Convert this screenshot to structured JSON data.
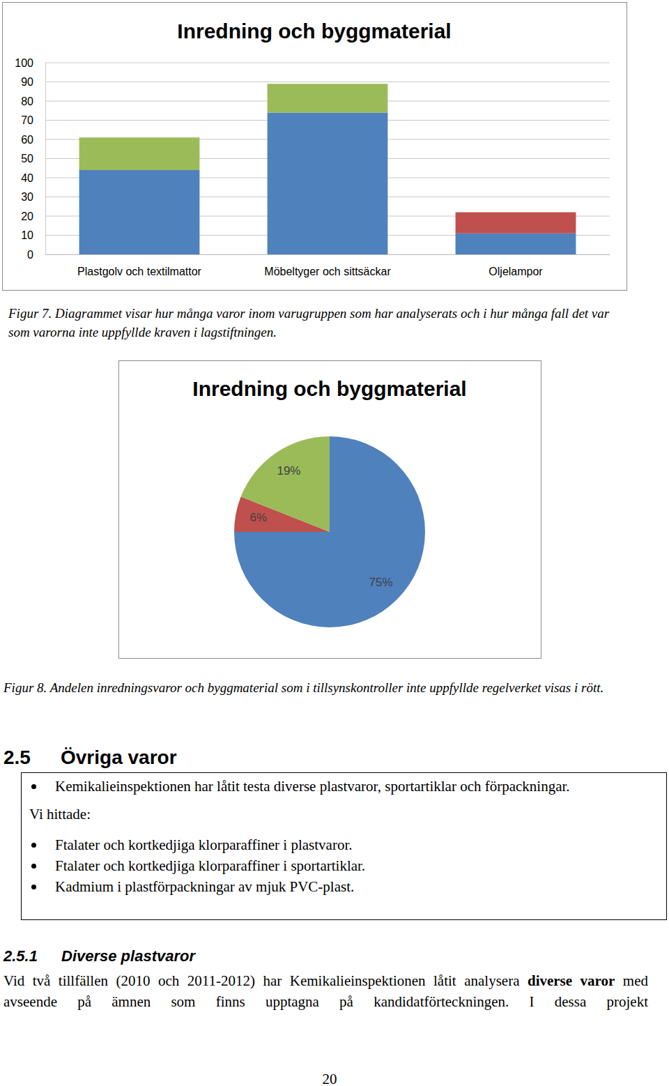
{
  "chart_data": [
    {
      "type": "bar",
      "title": "Inredning och byggmaterial",
      "categories": [
        "Plastgolv och textilmattor",
        "Möbeltyger och sittsäckar",
        "Oljelampor"
      ],
      "series": [
        {
          "color": "#4f81bd",
          "values": [
            44,
            74,
            11
          ]
        },
        {
          "color": "#9bbb59",
          "values": [
            17,
            15,
            0
          ]
        },
        {
          "color": "#c0504d",
          "values": [
            0,
            0,
            11
          ]
        }
      ],
      "stacked": true,
      "ylim": [
        0,
        100
      ],
      "yticks": [
        0,
        10,
        20,
        30,
        40,
        50,
        60,
        70,
        80,
        90,
        100
      ],
      "grid": true
    },
    {
      "type": "pie",
      "title": "Inredning och byggmaterial",
      "values": [
        75,
        6,
        19
      ],
      "value_labels": [
        "75%",
        "6%",
        "19%"
      ],
      "colors": [
        "#4f81bd",
        "#c0504d",
        "#9bbb59"
      ],
      "data_labels": true
    }
  ],
  "document": {
    "caption_7": "Figur 7. Diagrammet visar hur många varor inom varugruppen som har analyserats och i hur många fall det var som varorna inte uppfyllde kraven i lagstiftningen.",
    "caption_8": "Figur 8. Andelen inredningsvaror och byggmaterial som i tillsynskontroller inte uppfyllde regelverket visas i rött.",
    "section": {
      "number": "2.5",
      "title": "Övriga varor"
    },
    "box": {
      "intro": [
        "Kemikalieinspektionen har låtit testa diverse plastvaror, sportartiklar och förpackningar."
      ],
      "lead": "Vi hittade:",
      "findings": [
        "Ftalater och kortkedjiga klorparaffiner i plastvaror.",
        "Ftalater och kortkedjiga klorparaffiner i sportartiklar.",
        "Kadmium i plastförpackningar av mjuk PVC-plast."
      ]
    },
    "subsection": {
      "number": "2.5.1",
      "title": "Diverse plastvaror"
    },
    "paragraph": [
      {
        "text": "Vid två tillfällen (2010 och 2011-2012) har Kemikalieinspektionen låtit analysera "
      },
      {
        "text": "diverse varor",
        "bold": true
      },
      {
        "text": " med avseende på ämnen som finns upptagna på kandidatförteckningen. I dessa projekt"
      }
    ],
    "page_number": "20"
  }
}
